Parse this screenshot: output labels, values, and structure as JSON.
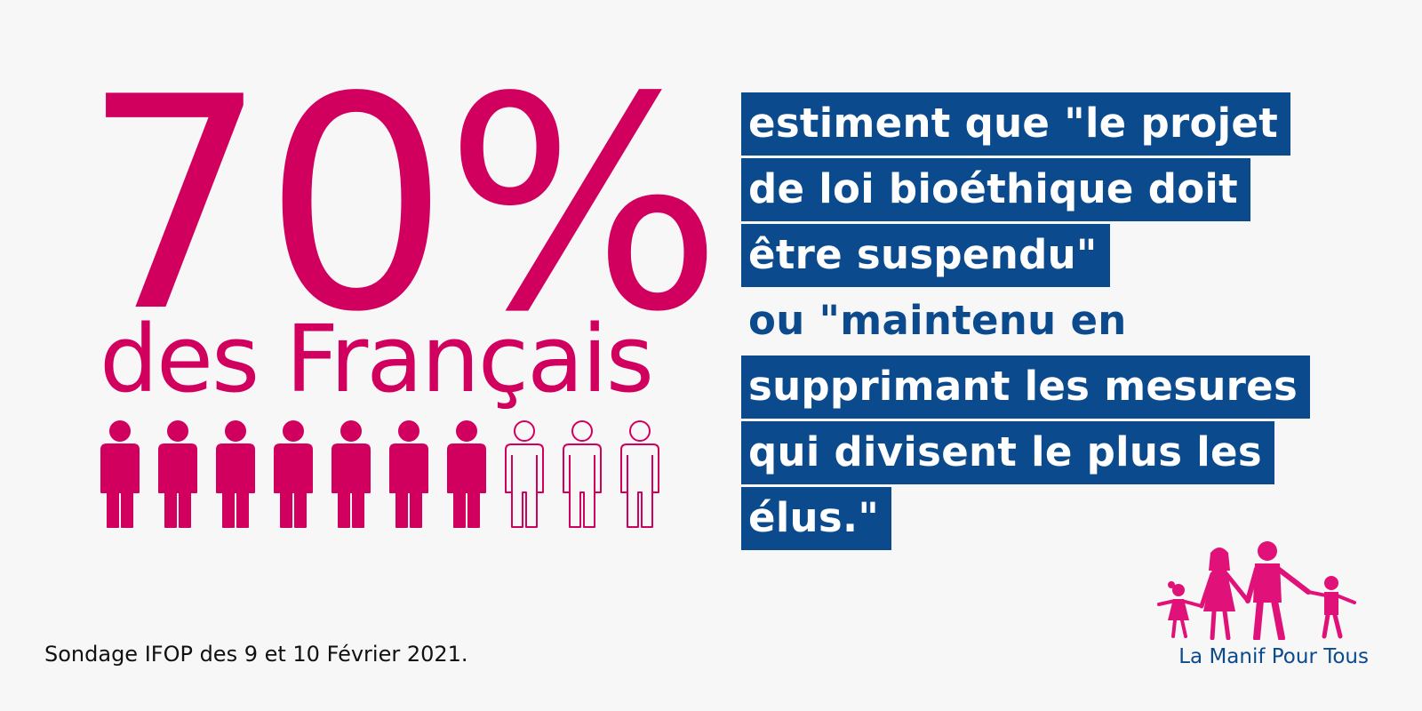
{
  "headline": {
    "percent": "70%",
    "subtitle": "des Français"
  },
  "people_pictogram": {
    "filled_count": 7,
    "total_count": 10,
    "color": "#d1005f"
  },
  "quote": {
    "lines": [
      {
        "text": "estiment que \"le projet",
        "highlight": true
      },
      {
        "text": "de loi bioéthique doit",
        "highlight": true
      },
      {
        "text": "être suspendu\"",
        "highlight": true
      },
      {
        "text": "ou \"maintenu en",
        "highlight": false
      },
      {
        "text": "supprimant les mesures",
        "highlight": true
      },
      {
        "text": "qui divisent le plus les",
        "highlight": true
      },
      {
        "text": "élus.\"",
        "highlight": true
      }
    ],
    "highlight_color": "#0b4a8c"
  },
  "source": "Sondage IFOP des 9 et 10 Février 2021.",
  "logo": {
    "name": "La Manif Pour Tous",
    "icon": "family-icon",
    "color": "#e0127a"
  }
}
